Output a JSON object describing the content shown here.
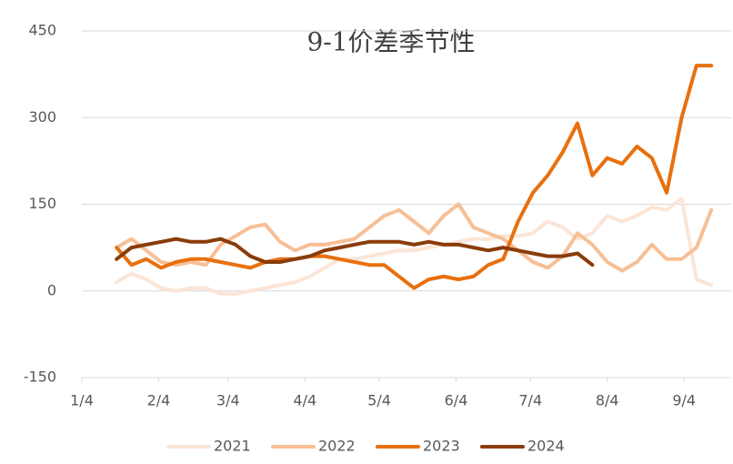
{
  "chart_data": {
    "type": "line",
    "title": "9-1价差季节性",
    "x": [
      14,
      20,
      26,
      32,
      38,
      44,
      50,
      56,
      62,
      68,
      74,
      80,
      86,
      92,
      98,
      104,
      110,
      116,
      122,
      128,
      134,
      140,
      146,
      152,
      158,
      164,
      170,
      176,
      182,
      188,
      194,
      200,
      206,
      212,
      218,
      224,
      230,
      236,
      242,
      248,
      254
    ],
    "xlim": [
      0,
      262
    ],
    "xticks": [
      {
        "value": 0,
        "label": "1/4"
      },
      {
        "value": 31,
        "label": "2/4"
      },
      {
        "value": 59,
        "label": "3/4"
      },
      {
        "value": 90,
        "label": "4/4"
      },
      {
        "value": 120,
        "label": "5/4"
      },
      {
        "value": 151,
        "label": "6/4"
      },
      {
        "value": 181,
        "label": "7/4"
      },
      {
        "value": 212,
        "label": "8/4"
      },
      {
        "value": 243,
        "label": "9/4"
      }
    ],
    "ylim": [
      -150,
      450
    ],
    "yticks": [
      -150,
      0,
      150,
      300,
      450
    ],
    "grid": true,
    "legend": "bottom",
    "series": [
      {
        "name": "2021",
        "color": "#fbe5d6",
        "values": [
          15,
          30,
          20,
          5,
          0,
          5,
          5,
          -5,
          -5,
          0,
          5,
          10,
          15,
          25,
          40,
          55,
          55,
          60,
          65,
          70,
          70,
          75,
          80,
          85,
          90,
          90,
          95,
          95,
          100,
          120,
          110,
          90,
          100,
          130,
          120,
          130,
          145,
          140,
          160,
          20,
          10
        ]
      },
      {
        "name": "2022",
        "color": "#f7bf95",
        "values": [
          75,
          90,
          70,
          50,
          45,
          50,
          45,
          80,
          95,
          110,
          115,
          85,
          70,
          80,
          80,
          85,
          90,
          110,
          130,
          140,
          120,
          100,
          130,
          150,
          110,
          100,
          90,
          70,
          50,
          40,
          60,
          100,
          80,
          50,
          35,
          50,
          80,
          55,
          55,
          75,
          140
        ]
      },
      {
        "name": "2023",
        "color": "#e8700f",
        "values": [
          75,
          45,
          55,
          40,
          50,
          55,
          55,
          50,
          45,
          40,
          50,
          55,
          55,
          60,
          60,
          55,
          50,
          45,
          45,
          25,
          5,
          20,
          25,
          20,
          25,
          45,
          55,
          120,
          170,
          200,
          240,
          290,
          200,
          230,
          220,
          250,
          230,
          170,
          300,
          390,
          390
        ]
      },
      {
        "name": "2024",
        "color": "#8a3c0a",
        "values": [
          55,
          75,
          80,
          85,
          90,
          85,
          85,
          90,
          80,
          60,
          50,
          50,
          55,
          60,
          70,
          75,
          80,
          85,
          85,
          85,
          80,
          85,
          80,
          80,
          75,
          70,
          75,
          70,
          65,
          60,
          60,
          65,
          45,
          null,
          null,
          null,
          null,
          null,
          null,
          null,
          null
        ]
      }
    ]
  }
}
